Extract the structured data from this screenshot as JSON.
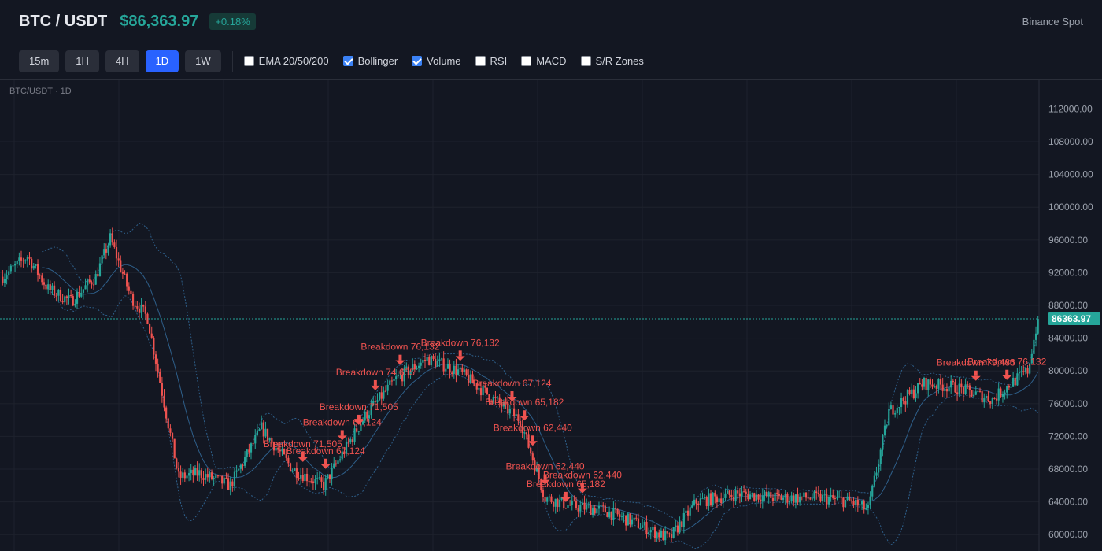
{
  "header": {
    "symbol": "BTC / USDT",
    "price": "$86,363.97",
    "change": "+0.18%",
    "exchange": "Binance Spot"
  },
  "toolbar": {
    "timeframes": [
      {
        "label": "15m",
        "active": false
      },
      {
        "label": "1H",
        "active": false
      },
      {
        "label": "4H",
        "active": false
      },
      {
        "label": "1D",
        "active": true
      },
      {
        "label": "1W",
        "active": false
      }
    ],
    "indicators": [
      {
        "label": "EMA 20/50/200",
        "checked": false
      },
      {
        "label": "Bollinger",
        "checked": true
      },
      {
        "label": "Volume",
        "checked": true
      },
      {
        "label": "RSI",
        "checked": false
      },
      {
        "label": "MACD",
        "checked": false
      },
      {
        "label": "S/R Zones",
        "checked": false
      }
    ]
  },
  "colors": {
    "up": "#26a69a",
    "down": "#ef5350",
    "band": "#2e5f8a",
    "grid": "#1e222d"
  },
  "chart_data": {
    "type": "candlestick",
    "label": "BTC/USDT · 1D",
    "y_ticks": [
      112000,
      108000,
      104000,
      100000,
      96000,
      92000,
      88000,
      84000,
      80000,
      76000,
      72000,
      68000,
      64000,
      60000
    ],
    "y_tick_labels": [
      "112000.00",
      "108000.00",
      "104000.00",
      "100000.00",
      "96000.00",
      "92000.00",
      "88000.00",
      "84000.00",
      "80000.00",
      "76000.00",
      "72000.00",
      "68000.00",
      "64000.00",
      "60000.00"
    ],
    "ylim": [
      58000,
      115600
    ],
    "last_price": 86363.97,
    "last_price_label": "86363.97",
    "bollinger": true,
    "path_anchors": [
      [
        0,
        91500
      ],
      [
        12,
        94000
      ],
      [
        22,
        90000
      ],
      [
        33,
        88500
      ],
      [
        45,
        91500
      ],
      [
        52,
        96200
      ],
      [
        62,
        89000
      ],
      [
        70,
        86500
      ],
      [
        85,
        67000
      ],
      [
        95,
        67500
      ],
      [
        110,
        66000
      ],
      [
        125,
        73000
      ],
      [
        140,
        68000
      ],
      [
        155,
        66000
      ],
      [
        175,
        74500
      ],
      [
        190,
        79000
      ],
      [
        205,
        81500
      ],
      [
        220,
        80000
      ],
      [
        235,
        77000
      ],
      [
        250,
        74000
      ],
      [
        262,
        64500
      ],
      [
        275,
        63500
      ],
      [
        290,
        63000
      ],
      [
        305,
        61500
      ],
      [
        322,
        59500
      ],
      [
        335,
        64000
      ],
      [
        355,
        65000
      ],
      [
        375,
        64500
      ],
      [
        395,
        64500
      ],
      [
        410,
        64000
      ],
      [
        418,
        63000
      ],
      [
        428,
        75000
      ],
      [
        445,
        78500
      ],
      [
        460,
        78000
      ],
      [
        478,
        76500
      ],
      [
        487,
        78500
      ],
      [
        495,
        80000
      ],
      [
        500,
        86363.97
      ]
    ],
    "annotations": [
      {
        "text": "Breakdown 71,505",
        "i": 145
      },
      {
        "text": "Breakdown 67,124",
        "i": 156
      },
      {
        "text": "Breakdown 67,124",
        "i": 164
      },
      {
        "text": "Breakdown 71,505",
        "i": 172
      },
      {
        "text": "Breakdown 74,655",
        "i": 180
      },
      {
        "text": "Breakdown 76,132",
        "i": 192
      },
      {
        "text": "Breakdown 76,132",
        "i": 221
      },
      {
        "text": "Breakdown 67,124",
        "i": 246
      },
      {
        "text": "Breakdown 65,182",
        "i": 252
      },
      {
        "text": "Breakdown 65,182",
        "i": 272
      },
      {
        "text": "Breakdown 62,440",
        "i": 256
      },
      {
        "text": "Breakdown 62,440",
        "i": 262
      },
      {
        "text": "Breakdown 62,440",
        "i": 280
      },
      {
        "text": "Breakdown 79,486",
        "i": 470
      },
      {
        "text": "Breakdown 76,132",
        "i": 485
      }
    ]
  }
}
